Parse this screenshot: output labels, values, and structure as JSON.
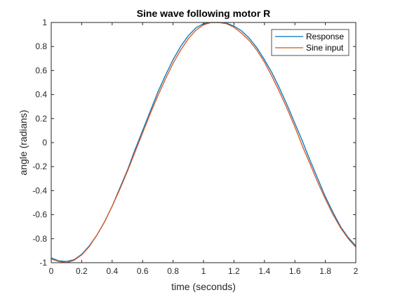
{
  "chart_data": {
    "type": "line",
    "title": "Sine wave following motor R",
    "xlabel": "time (seconds)",
    "ylabel": "angle (radians)",
    "xlim": [
      0,
      2
    ],
    "ylim": [
      -1,
      1
    ],
    "xticks": [
      0,
      0.2,
      0.4,
      0.6,
      0.8,
      1,
      1.2,
      1.4,
      1.6,
      1.8,
      2
    ],
    "xtick_labels": [
      "0",
      "0.2",
      "0.4",
      "0.6",
      "0.8",
      "1",
      "1.2",
      "1.4",
      "1.6",
      "1.8",
      "2"
    ],
    "yticks": [
      -1,
      -0.8,
      -0.6,
      -0.4,
      -0.2,
      0,
      0.2,
      0.4,
      0.6,
      0.8,
      1
    ],
    "ytick_labels": [
      "-1",
      "-0.8",
      "-0.6",
      "-0.4",
      "-0.2",
      "0",
      "0.2",
      "0.4",
      "0.6",
      "0.8",
      "1"
    ],
    "grid": false,
    "legend_position": "top-right",
    "series": [
      {
        "name": "Response",
        "color": "#0072BD",
        "x": [
          0,
          0.05,
          0.1,
          0.15,
          0.2,
          0.25,
          0.3,
          0.35,
          0.4,
          0.45,
          0.5,
          0.55,
          0.6,
          0.65,
          0.7,
          0.75,
          0.8,
          0.85,
          0.9,
          0.95,
          1.0,
          1.05,
          1.1,
          1.15,
          1.2,
          1.25,
          1.3,
          1.35,
          1.4,
          1.45,
          1.5,
          1.55,
          1.6,
          1.65,
          1.7,
          1.75,
          1.8,
          1.85,
          1.9,
          1.95,
          2.0
        ],
        "y": [
          -0.96,
          -0.985,
          -0.99,
          -0.975,
          -0.93,
          -0.86,
          -0.77,
          -0.66,
          -0.53,
          -0.38,
          -0.23,
          -0.06,
          0.1,
          0.26,
          0.42,
          0.56,
          0.69,
          0.8,
          0.89,
          0.955,
          0.99,
          1.0,
          1.0,
          0.995,
          0.97,
          0.93,
          0.87,
          0.79,
          0.69,
          0.58,
          0.45,
          0.31,
          0.16,
          0.01,
          -0.15,
          -0.3,
          -0.45,
          -0.58,
          -0.7,
          -0.79,
          -0.86
        ]
      },
      {
        "name": "Sine input",
        "color": "#D95319",
        "x": [
          0,
          0.05,
          0.1,
          0.15,
          0.2,
          0.25,
          0.3,
          0.35,
          0.4,
          0.45,
          0.5,
          0.55,
          0.6,
          0.65,
          0.7,
          0.75,
          0.8,
          0.85,
          0.9,
          0.95,
          1.0,
          1.05,
          1.1,
          1.15,
          1.2,
          1.25,
          1.3,
          1.35,
          1.4,
          1.45,
          1.5,
          1.55,
          1.6,
          1.65,
          1.7,
          1.75,
          1.8,
          1.85,
          1.9,
          1.95,
          2.0
        ],
        "y": [
          -0.97,
          -0.99,
          -1.0,
          -0.98,
          -0.935,
          -0.865,
          -0.77,
          -0.66,
          -0.53,
          -0.39,
          -0.24,
          -0.08,
          0.08,
          0.24,
          0.39,
          0.53,
          0.66,
          0.77,
          0.865,
          0.935,
          0.98,
          1.0,
          1.0,
          0.99,
          0.96,
          0.91,
          0.85,
          0.77,
          0.67,
          0.55,
          0.42,
          0.28,
          0.13,
          -0.03,
          -0.18,
          -0.33,
          -0.47,
          -0.6,
          -0.71,
          -0.8,
          -0.87
        ]
      }
    ]
  }
}
